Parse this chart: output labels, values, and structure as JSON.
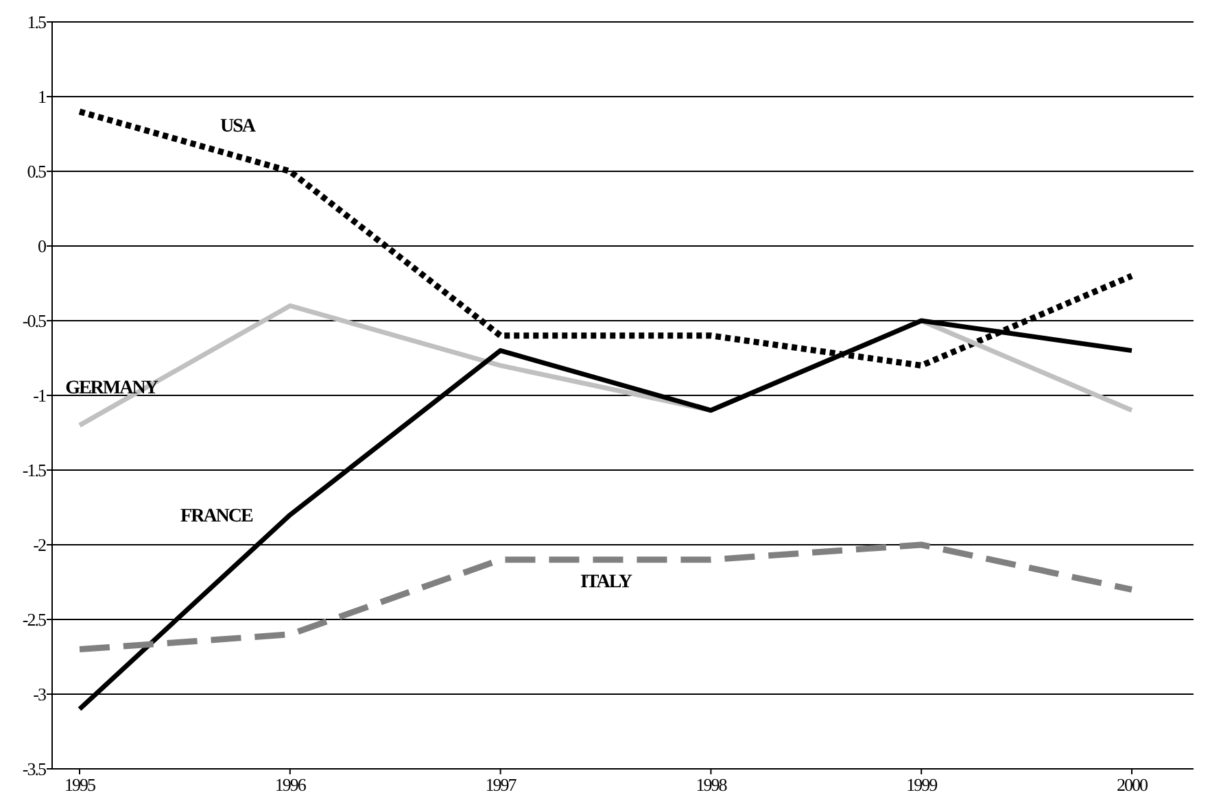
{
  "chart_data": {
    "type": "line",
    "categories": [
      "1995",
      "1996",
      "1997",
      "1998",
      "1999",
      "2000"
    ],
    "series": [
      {
        "name": "USA",
        "color": "#000000",
        "line_style": "dotted",
        "values": [
          0.9,
          0.5,
          -0.6,
          -0.6,
          -0.8,
          -0.2
        ]
      },
      {
        "name": "GERMANY",
        "color": "#c0c0c0",
        "line_style": "solid",
        "values": [
          -1.2,
          -0.4,
          -0.8,
          -1.1,
          -0.5,
          -1.1
        ]
      },
      {
        "name": "FRANCE",
        "color": "#000000",
        "line_style": "solid",
        "values": [
          -3.1,
          -1.8,
          -0.7,
          -1.1,
          -0.5,
          -0.7
        ]
      },
      {
        "name": "ITALY",
        "color": "#808080",
        "line_style": "dashed",
        "values": [
          -2.7,
          -2.6,
          -2.1,
          -2.1,
          -2.0,
          -2.3
        ]
      }
    ],
    "ylim": [
      -3.5,
      1.5
    ],
    "yticks": [
      -3.5,
      -3,
      -2.5,
      -2,
      -1.5,
      -1,
      -0.5,
      0,
      0.5,
      1,
      1.5
    ],
    "grid": "y",
    "marker": "none"
  }
}
